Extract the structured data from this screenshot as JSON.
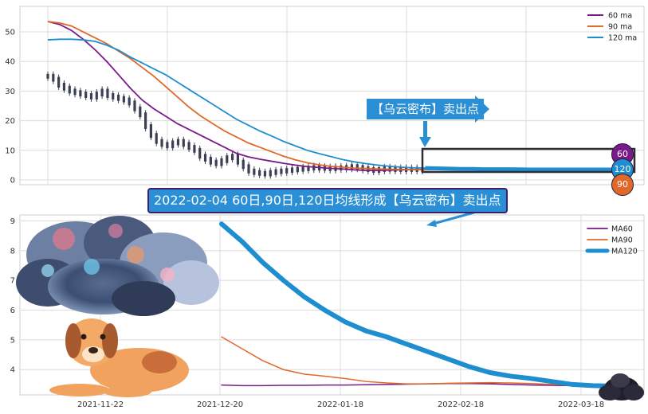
{
  "chart_data": [
    {
      "type": "line",
      "series": [
        {
          "name": "60 ma",
          "color": "#7a1a8a",
          "x": [
            0,
            5,
            10,
            15,
            20,
            25,
            30,
            35,
            40,
            45,
            50,
            55,
            60,
            65,
            70,
            75,
            80,
            85,
            90,
            95,
            100,
            105,
            110,
            115,
            120,
            125,
            130,
            135,
            140,
            145,
            150,
            155,
            160,
            165,
            170,
            175,
            180,
            185,
            190,
            195,
            200,
            205,
            210,
            215,
            220,
            225,
            230,
            235,
            240
          ],
          "values": [
            53.5,
            52.5,
            50.5,
            47.5,
            44,
            40,
            35.5,
            31,
            27,
            24,
            21.5,
            19,
            17,
            15,
            13,
            11,
            9,
            7.8,
            7,
            6.3,
            5.6,
            5,
            4.5,
            4.2,
            3.9,
            3.7,
            3.4,
            3.2,
            3.2,
            3.3,
            3.4,
            3.5,
            3.5,
            3.5,
            3.5,
            3.5,
            3.5,
            3.5,
            3.5,
            3.5,
            3.5,
            3.5,
            3.5,
            3.5,
            3.5,
            3.5,
            3.5,
            3.5,
            3.5
          ]
        },
        {
          "name": "90 ma",
          "color": "#e0692a",
          "x": [
            0,
            5,
            10,
            15,
            20,
            25,
            30,
            35,
            40,
            45,
            50,
            55,
            60,
            65,
            70,
            75,
            80,
            85,
            90,
            95,
            100,
            105,
            110,
            115,
            120,
            125,
            130,
            135,
            140,
            145,
            150,
            155,
            160,
            165,
            170,
            175,
            180,
            185,
            190,
            195,
            200,
            205,
            210,
            215,
            220,
            225,
            230,
            235,
            240
          ],
          "values": [
            53.5,
            53,
            52,
            50,
            48,
            46,
            43.5,
            41,
            38,
            35,
            31.5,
            28,
            24.5,
            21.5,
            19,
            16.5,
            14.5,
            12.5,
            11,
            9.5,
            8,
            6.8,
            5.8,
            5.1,
            4.6,
            4.3,
            4,
            3.85,
            3.7,
            3.6,
            3.55,
            3.5,
            3.5,
            3.5,
            3.5,
            3.5,
            3.5,
            3.5,
            3.5,
            3.5,
            3.5,
            3.5,
            3.5,
            3.5,
            3.5,
            3.5,
            3.5,
            3.5,
            3.5
          ]
        },
        {
          "name": "120 ma",
          "color": "#1e8ed0",
          "x": [
            0,
            5,
            10,
            15,
            20,
            25,
            30,
            35,
            40,
            45,
            50,
            55,
            60,
            65,
            70,
            75,
            80,
            85,
            90,
            95,
            100,
            105,
            110,
            115,
            120,
            125,
            130,
            135,
            140,
            145,
            150,
            155,
            160,
            165,
            170,
            175,
            180,
            185,
            190,
            195,
            200,
            205,
            210,
            215,
            220,
            225,
            230,
            235,
            240
          ],
          "values": [
            47.3,
            47.5,
            47.5,
            47.3,
            46.8,
            45.5,
            43.8,
            41.5,
            39.5,
            37.5,
            35.5,
            33,
            30.5,
            28,
            25.5,
            23,
            20.5,
            18.5,
            16.5,
            14.8,
            13,
            11.5,
            10,
            8.9,
            7.9,
            6.9,
            6.1,
            5.5,
            5,
            4.6,
            4.3,
            4.1,
            4,
            3.9,
            3.8,
            3.7,
            3.7,
            3.6,
            3.6,
            3.6,
            3.55,
            3.5,
            3.5,
            3.5,
            3.5,
            3.5,
            3.5,
            3.5,
            3.5
          ]
        }
      ],
      "candles_close_approx": [
        35,
        34,
        32,
        31,
        30,
        29.5,
        29,
        28.5,
        28,
        29,
        30,
        28.5,
        28,
        27.5,
        27,
        26,
        24,
        22,
        18,
        15,
        13,
        12,
        11.5,
        12.5,
        13,
        12,
        11,
        10,
        8,
        7,
        6,
        5.5,
        6.5,
        7.5,
        8,
        6,
        4.5,
        3,
        2.5,
        2.2,
        2,
        2.5,
        2.8,
        3,
        3.2,
        3.4,
        3.6,
        3.8,
        4,
        4.2,
        4,
        3.9,
        3.8,
        4,
        4.1,
        4.2,
        4.5,
        4.2,
        3.8,
        3.5,
        3.2,
        3.5,
        3.8,
        3.6,
        3.5,
        3.6,
        3.5,
        3.6,
        3.5,
        3.5
      ],
      "ylim": [
        0,
        57
      ],
      "yticks": [
        "0",
        "10",
        "20",
        "30",
        "40",
        "50"
      ],
      "legend_position": "top-right",
      "grid": true
    },
    {
      "type": "line",
      "series": [
        {
          "name": "MA60",
          "color": "#7a1a8a",
          "x": [
            0,
            5,
            10,
            15,
            20,
            25,
            30,
            35,
            40,
            45,
            50,
            55,
            60,
            65,
            70,
            75,
            80,
            85,
            90,
            95
          ],
          "values": [
            3.48,
            3.46,
            3.46,
            3.47,
            3.47,
            3.48,
            3.48,
            3.49,
            3.5,
            3.51,
            3.52,
            3.53,
            3.53,
            3.52,
            3.5,
            3.48,
            3.47,
            3.46,
            3.45,
            3.45
          ]
        },
        {
          "name": "MA90",
          "color": "#e0692a",
          "x": [
            0,
            5,
            10,
            15,
            20,
            25,
            30,
            35,
            40,
            45,
            50,
            55,
            60,
            65,
            70,
            75,
            80,
            85,
            90,
            95
          ],
          "values": [
            5.1,
            4.7,
            4.3,
            4.0,
            3.85,
            3.78,
            3.7,
            3.6,
            3.55,
            3.52,
            3.52,
            3.54,
            3.55,
            3.56,
            3.55,
            3.53,
            3.5,
            3.48,
            3.47,
            3.46
          ]
        },
        {
          "name": "MA120",
          "color": "#1e8ed0",
          "x": [
            0,
            5,
            10,
            15,
            20,
            25,
            30,
            35,
            40,
            45,
            50,
            55,
            60,
            65,
            70,
            75,
            80,
            85,
            90,
            95
          ],
          "values": [
            8.9,
            8.3,
            7.6,
            7.0,
            6.45,
            6.0,
            5.6,
            5.3,
            5.1,
            4.85,
            4.6,
            4.35,
            4.1,
            3.9,
            3.78,
            3.7,
            3.6,
            3.5,
            3.46,
            3.45
          ]
        }
      ],
      "ylim": [
        3.15,
        9.2
      ],
      "yticks": [
        "4",
        "5",
        "6",
        "7",
        "8",
        "9"
      ],
      "xticks": [
        "2021-11-22",
        "2021-12-20",
        "2022-01-18",
        "2022-02-18",
        "2022-03-18"
      ],
      "legend_position": "top-right",
      "grid": true
    }
  ],
  "annotations": {
    "arrow_label": "【乌云密布】卖出点",
    "banner": "2022-02-04 60日,90日,120日均线形成【乌云密布】卖出点",
    "badges": [
      "60",
      "120",
      "90"
    ]
  },
  "colors": {
    "box": "#2d2d35",
    "callout": "#2b8fd6",
    "banner_border": "#3a1f6e"
  }
}
